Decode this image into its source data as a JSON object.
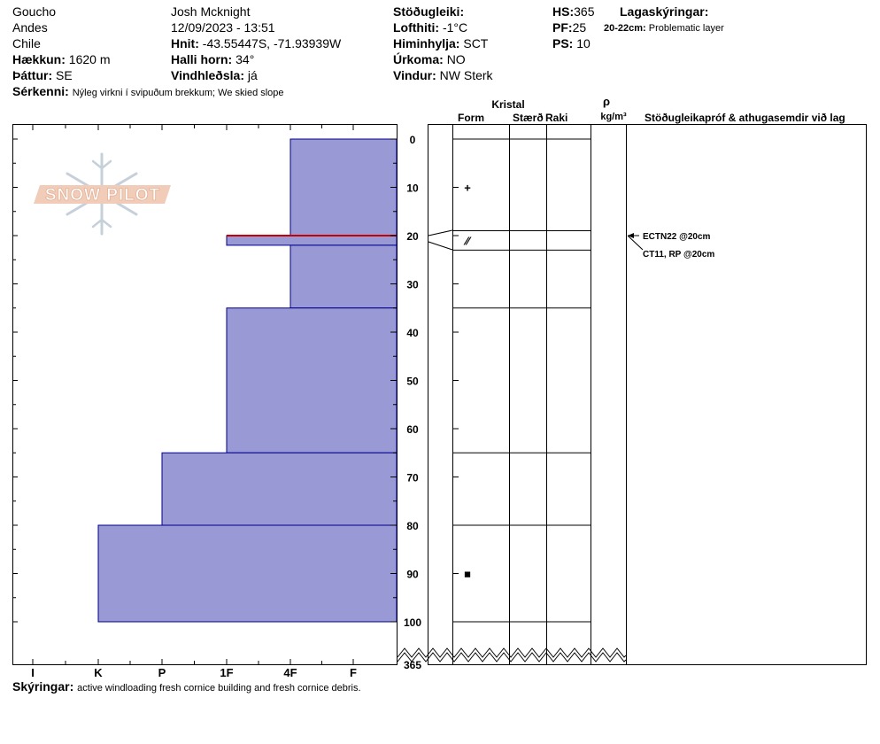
{
  "header": {
    "col1": [
      "Goucho",
      "Andes",
      "Chile"
    ],
    "elevation_label": "Hækkun:",
    "elevation_value": "1620 m",
    "aspect_label": "Þáttur:",
    "aspect_value": "SE",
    "observer": "Josh Mcknight",
    "datetime": "12/09/2023 - 13:51",
    "coords_label": "Hnit:",
    "coords_value": "-43.55447S, -71.93939W",
    "slope_label": "Halli horn:",
    "slope_value": "34°",
    "wind_loading_label": "Vindhleðsla:",
    "wind_loading_value": "já",
    "stability_label": "Stöðugleiki:",
    "air_temp_label": "Lofthiti:",
    "air_temp_value": "-1°C",
    "sky_label": "Himinhylja:",
    "sky_value": "SCT",
    "precip_label": "Úrkoma:",
    "precip_value": "NO",
    "wind_label": "Vindur:",
    "wind_value": "NW Sterk",
    "hs_label": "HS:",
    "hs_value": "365",
    "pf_label": "PF:",
    "pf_value": "25",
    "ps_label": "PS:",
    "ps_value": "10",
    "layer_notes_label": "Lagaskýringar:",
    "layer_note_depth": "20-22cm:",
    "layer_note_text": "Problematic layer",
    "features_label": "Sérkenni:",
    "features_value": "Nýleg virkni í svipuðum brekkum; We skied slope"
  },
  "footer": {
    "notes_label": "Skýringar:",
    "notes_value": "active windloading fresh cornice building and fresh cornice debris."
  },
  "logo": {
    "text": "SNOW PILOT"
  },
  "columns": {
    "kristal": "Kristal",
    "form": "Form",
    "size": "Stærð",
    "moisture": "Raki",
    "rho": "ρ",
    "density_unit": "kg/m³",
    "stability_tests": "Stöðugleikapróf & athugasemdir við lag"
  },
  "chart_data": {
    "type": "snow_profile",
    "hardness_scale": [
      "I",
      "K",
      "P",
      "1F",
      "4F",
      "F"
    ],
    "depth_axis": {
      "unit": "cm",
      "ticks": [
        0,
        10,
        20,
        30,
        40,
        50,
        60,
        70,
        80,
        90,
        100
      ],
      "total_depth_label": "365"
    },
    "layers": [
      {
        "top": 0,
        "bottom": 20,
        "hardness": "4F"
      },
      {
        "top": 20,
        "bottom": 22,
        "hardness": "1F",
        "problematic": true
      },
      {
        "top": 22,
        "bottom": 35,
        "hardness": "4F"
      },
      {
        "top": 35,
        "bottom": 65,
        "hardness": "1F"
      },
      {
        "top": 65,
        "bottom": 80,
        "hardness": "P"
      },
      {
        "top": 80,
        "bottom": 100,
        "hardness": "K"
      }
    ],
    "grain_boundaries": [
      0,
      19,
      23,
      35,
      65,
      80,
      100
    ],
    "grain_symbols": [
      {
        "depth": 10,
        "symbol": "+"
      },
      {
        "depth": 21,
        "symbol": "⁄⁄"
      },
      {
        "depth": 90,
        "symbol": "■"
      }
    ],
    "stability_tests": [
      {
        "text": "ECTN22 @20cm",
        "depth": 20
      },
      {
        "text": "CT11, RP @20cm",
        "depth": 20
      }
    ],
    "colors": {
      "layer_fill": "#9999d6",
      "layer_stroke": "#00008b",
      "problem_line": "#c80000"
    }
  }
}
